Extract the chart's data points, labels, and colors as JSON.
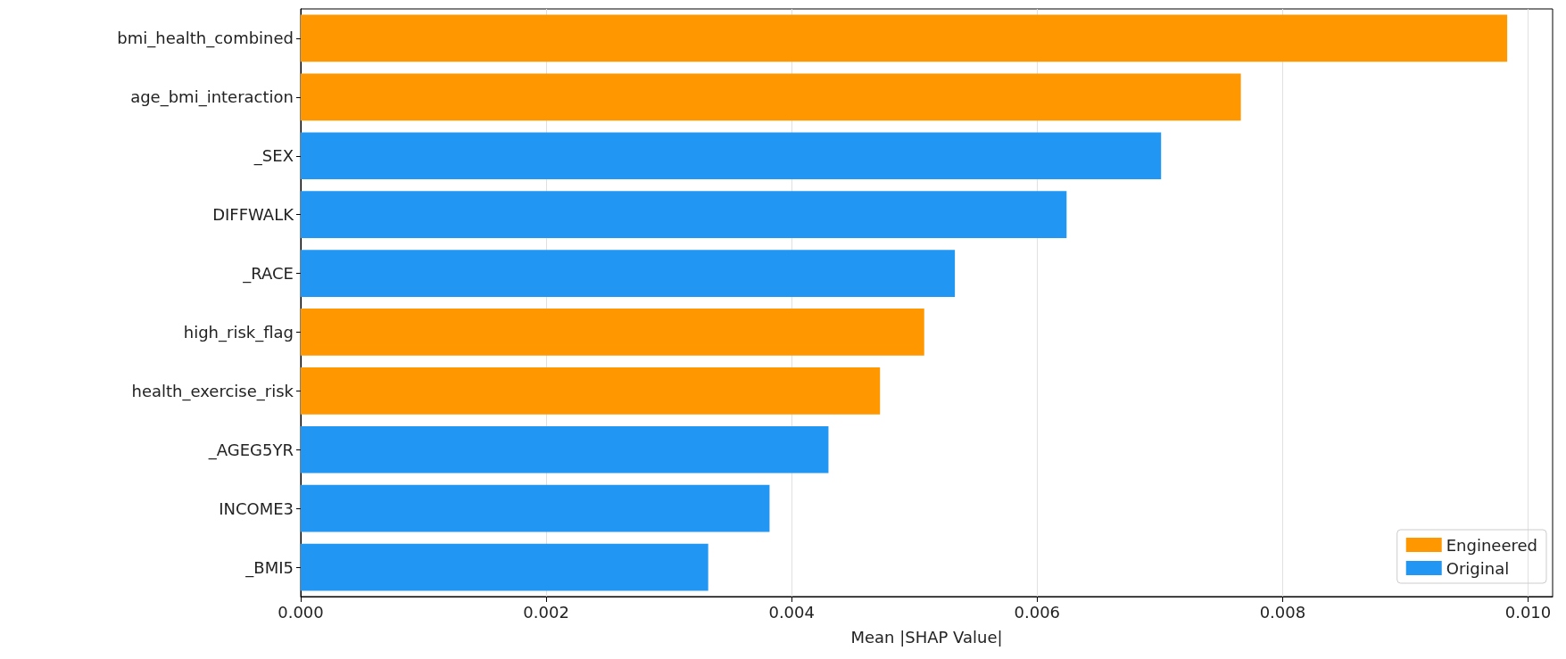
{
  "chart_data": {
    "type": "bar",
    "orientation": "horizontal",
    "stacked": true,
    "categories": [
      "bmi_health_combined",
      "age_bmi_interaction",
      "_SEX",
      "DIFFWALK",
      "_RACE",
      "high_risk_flag",
      "health_exercise_risk",
      "_AGEG5YR",
      "INCOME3",
      "_BMI5"
    ],
    "series": [
      {
        "name": "Engineered",
        "color": "#ff9800",
        "values": [
          0.00983,
          0.00766,
          null,
          null,
          null,
          0.00508,
          0.00472,
          null,
          null,
          null
        ]
      },
      {
        "name": "Original",
        "color": "#2196f3",
        "values": [
          null,
          null,
          0.00701,
          0.00624,
          0.00533,
          null,
          null,
          0.0043,
          0.00382,
          0.00332
        ]
      }
    ],
    "xlabel": "Mean |SHAP Value|",
    "xlim": [
      0,
      0.0102
    ],
    "xticks": [
      {
        "value": 0,
        "label": "0.000"
      },
      {
        "value": 0.002,
        "label": "0.002"
      },
      {
        "value": 0.004,
        "label": "0.004"
      },
      {
        "value": 0.006,
        "label": "0.006"
      },
      {
        "value": 0.008,
        "label": "0.008"
      },
      {
        "value": 0.01,
        "label": "0.010"
      }
    ],
    "grid": "x",
    "legend": "bottom right"
  }
}
